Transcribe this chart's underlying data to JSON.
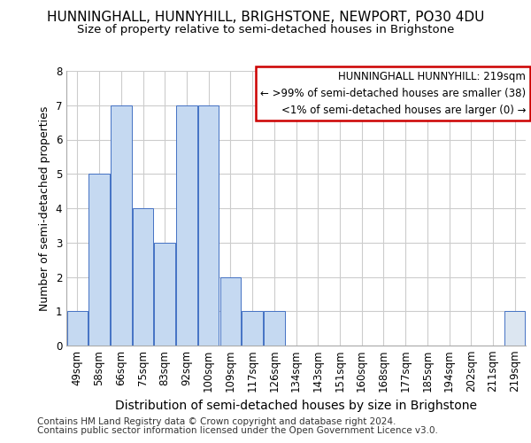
{
  "title1": "HUNNINGHALL, HUNNYHILL, BRIGHSTONE, NEWPORT, PO30 4DU",
  "title2": "Size of property relative to semi-detached houses in Brighstone",
  "xlabel": "Distribution of semi-detached houses by size in Brighstone",
  "ylabel": "Number of semi-detached properties",
  "categories": [
    "49sqm",
    "58sqm",
    "66sqm",
    "75sqm",
    "83sqm",
    "92sqm",
    "100sqm",
    "109sqm",
    "117sqm",
    "126sqm",
    "134sqm",
    "143sqm",
    "151sqm",
    "160sqm",
    "168sqm",
    "177sqm",
    "185sqm",
    "194sqm",
    "202sqm",
    "211sqm",
    "219sqm"
  ],
  "values": [
    1,
    5,
    7,
    4,
    3,
    7,
    7,
    2,
    1,
    1,
    0,
    0,
    0,
    0,
    0,
    0,
    0,
    0,
    0,
    0,
    1
  ],
  "bar_color_normal": "#c5d9f1",
  "bar_color_highlight": "#dce6f1",
  "bar_edge_color": "#4472c4",
  "highlight_index": 20,
  "annotation_line1": "HUNNINGHALL HUNNYHILL: 219sqm",
  "annotation_line2": "← >99% of semi-detached houses are smaller (38)",
  "annotation_line3": "<1% of semi-detached houses are larger (0) →",
  "annotation_box_edgecolor": "#cc0000",
  "ylim": [
    0,
    8
  ],
  "yticks": [
    0,
    1,
    2,
    3,
    4,
    5,
    6,
    7,
    8
  ],
  "footer1": "Contains HM Land Registry data © Crown copyright and database right 2024.",
  "footer2": "Contains public sector information licensed under the Open Government Licence v3.0.",
  "background_color": "#ffffff",
  "grid_color": "#cccccc",
  "title1_fontsize": 11,
  "title2_fontsize": 9.5,
  "xlabel_fontsize": 10,
  "ylabel_fontsize": 9,
  "tick_fontsize": 8.5,
  "annotation_fontsize": 8.5,
  "footer_fontsize": 7.5
}
